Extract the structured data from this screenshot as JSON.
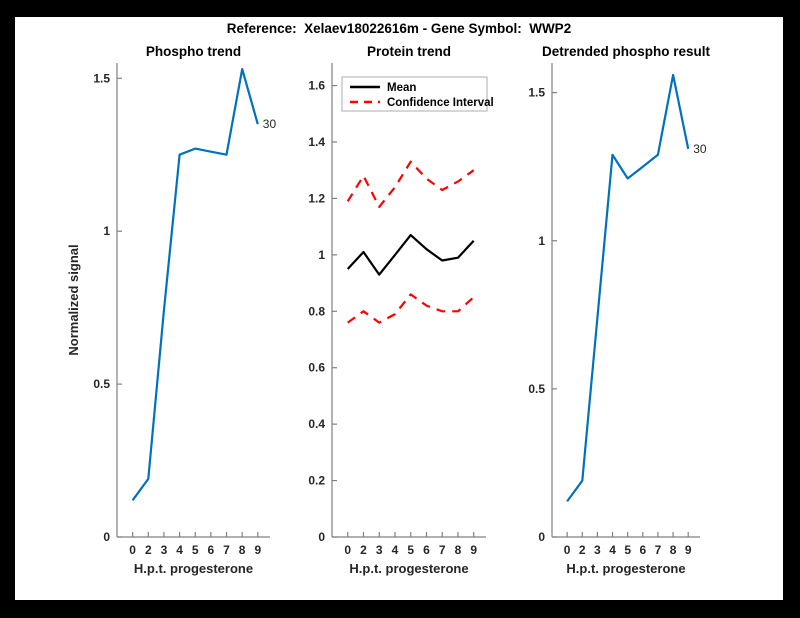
{
  "figure": {
    "title": "Reference:  Xelaev18022616m - Gene Symbol:  WWP2",
    "background_color": "#ffffff",
    "frame_color": "#000000",
    "axis_line_color": "#808080",
    "text_color": "#262626"
  },
  "chart_data": [
    {
      "type": "line",
      "title": "Phospho trend",
      "xlabel": "H.p.t. progesterone",
      "ylabel": "Normalized signal",
      "categories": [
        "0",
        "2",
        "3",
        "4",
        "5",
        "6",
        "7",
        "8",
        "9"
      ],
      "series": [
        {
          "name": "phospho-signal",
          "color": "#0072BD",
          "style": "solid",
          "values": [
            0.12,
            0.19,
            0.74,
            1.25,
            1.27,
            1.26,
            1.25,
            1.53,
            1.35
          ]
        }
      ],
      "yticks": [
        0,
        0.5,
        1,
        1.5
      ],
      "ytick_labels": [
        "0",
        "0.5",
        "1",
        "1.5"
      ],
      "ylim": [
        0,
        1.55
      ],
      "grid": false,
      "end_annotation": "30",
      "legend": null
    },
    {
      "type": "line",
      "title": "Protein trend",
      "xlabel": "H.p.t. progesterone",
      "ylabel": "",
      "categories": [
        "0",
        "2",
        "3",
        "4",
        "5",
        "6",
        "7",
        "8",
        "9"
      ],
      "series": [
        {
          "name": "mean",
          "color": "#000000",
          "style": "solid",
          "values": [
            0.95,
            1.01,
            0.93,
            1.0,
            1.07,
            1.02,
            0.98,
            0.99,
            1.05
          ]
        },
        {
          "name": "confidence-upper",
          "color": "#FF0000",
          "style": "dashed",
          "values": [
            1.19,
            1.28,
            1.17,
            1.24,
            1.33,
            1.27,
            1.23,
            1.26,
            1.3
          ]
        },
        {
          "name": "confidence-lower",
          "color": "#FF0000",
          "style": "dashed",
          "values": [
            0.76,
            0.8,
            0.76,
            0.79,
            0.86,
            0.82,
            0.8,
            0.8,
            0.85
          ]
        }
      ],
      "yticks": [
        0,
        0.2,
        0.4,
        0.6,
        0.8,
        1,
        1.2,
        1.4,
        1.6
      ],
      "ytick_labels": [
        "0",
        "0.2",
        "0.4",
        "0.6",
        "0.8",
        "1",
        "1.2",
        "1.4",
        "1.6"
      ],
      "ylim": [
        0,
        1.68
      ],
      "grid": false,
      "end_annotation": null,
      "legend": {
        "position": "northwest",
        "items": [
          {
            "label": "Mean",
            "color": "#000000",
            "style": "solid"
          },
          {
            "label": "Confidence Interval",
            "color": "#FF0000",
            "style": "dashed"
          }
        ]
      }
    },
    {
      "type": "line",
      "title": "Detrended phospho result",
      "xlabel": "H.p.t. progesterone",
      "ylabel": "",
      "categories": [
        "0",
        "2",
        "3",
        "4",
        "5",
        "6",
        "7",
        "8",
        "9"
      ],
      "series": [
        {
          "name": "detrended-phospho-signal",
          "color": "#0072BD",
          "style": "solid",
          "values": [
            0.12,
            0.19,
            0.74,
            1.29,
            1.21,
            1.25,
            1.29,
            1.56,
            1.31
          ]
        }
      ],
      "yticks": [
        0,
        0.5,
        1,
        1.5
      ],
      "ytick_labels": [
        "0",
        "0.5",
        "1",
        "1.5"
      ],
      "ylim": [
        0,
        1.6
      ],
      "grid": false,
      "end_annotation": "30",
      "legend": null
    }
  ]
}
